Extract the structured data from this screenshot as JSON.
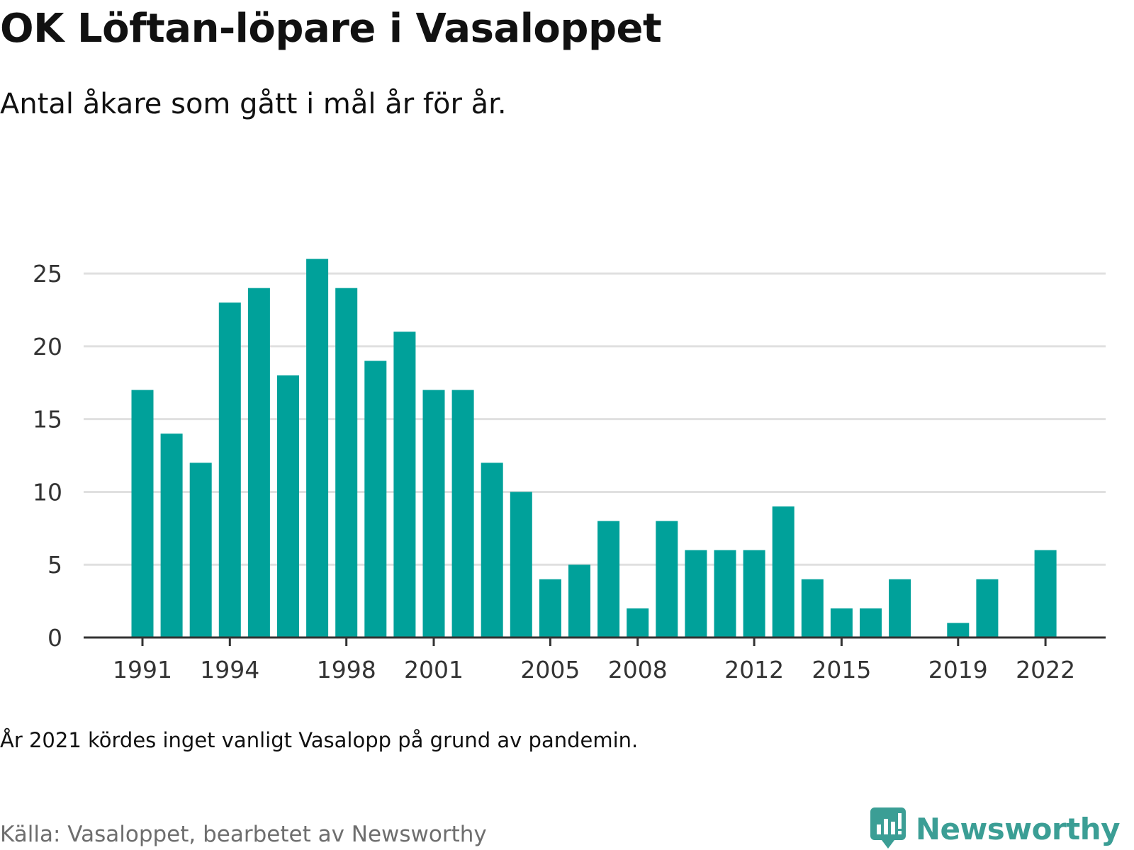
{
  "title": "OK Löftan-löpare i Vasaloppet",
  "subtitle": "Antal åkare som gått i mål år för år.",
  "note": "År 2021 kördes inget vanligt Vasalopp på grund av pandemin.",
  "source": "Källa: Vasaloppet, bearbetet av Newsworthy",
  "brand": {
    "name": "Newsworthy",
    "logo_icon": "chart-speech-bubble-icon",
    "color": "#3b9e95"
  },
  "colors": {
    "bar": "#00a19a",
    "grid": "#e0e0e0",
    "axis": "#333333"
  },
  "chart_data": {
    "type": "bar",
    "title": "OK Löftan-löpare i Vasaloppet",
    "subtitle": "Antal åkare som gått i mål år för år.",
    "xlabel": "",
    "ylabel": "",
    "categories": [
      1991,
      1992,
      1993,
      1994,
      1995,
      1996,
      1997,
      1998,
      1999,
      2000,
      2001,
      2002,
      2003,
      2004,
      2005,
      2006,
      2007,
      2008,
      2009,
      2010,
      2011,
      2012,
      2013,
      2014,
      2015,
      2016,
      2017,
      2018,
      2019,
      2020,
      2021,
      2022
    ],
    "values": [
      17,
      14,
      12,
      23,
      24,
      18,
      26,
      24,
      19,
      21,
      17,
      17,
      12,
      10,
      4,
      5,
      8,
      2,
      8,
      6,
      6,
      6,
      9,
      4,
      2,
      2,
      4,
      0,
      1,
      4,
      0,
      6
    ],
    "ylim": [
      0,
      27
    ],
    "yticks": [
      0,
      5,
      10,
      15,
      20,
      25
    ],
    "xtick_labels": [
      "1991",
      "1994",
      "1998",
      "2001",
      "2005",
      "2008",
      "2012",
      "2015",
      "2019",
      "2022"
    ],
    "grid": true,
    "legend": "none"
  }
}
